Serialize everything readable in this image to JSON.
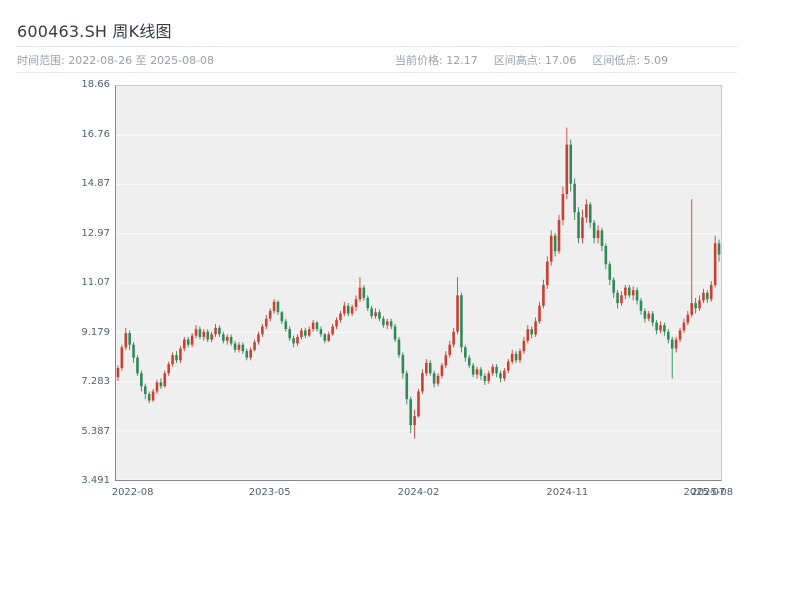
{
  "header": {
    "title": "600463.SH 周K线图",
    "range_label": "时间范围: 2022-08-26 至 2025-08-08",
    "stats": {
      "current": "当前价格: 12.17",
      "high": "区间高点: 17.06",
      "low": "区间低点: 5.09"
    }
  },
  "chart_data": {
    "type": "candlestick",
    "title": "600463.SH 周K线图",
    "symbol": "600463.SH",
    "period": "weekly",
    "date_start": "2022-08-26",
    "date_end": "2025-08-08",
    "current_price": 12.17,
    "range_high": 17.06,
    "range_low": 5.09,
    "ylim": [
      3.491,
      18.66
    ],
    "grid": "horizontal-only",
    "legend": "none",
    "up_color": "#cf3e2f",
    "down_color": "#2e8b57",
    "plot_bg": "#efefef",
    "y_ticks": [
      {
        "v": 3.491,
        "label": "3.491"
      },
      {
        "v": 5.387,
        "label": "5.387"
      },
      {
        "v": 7.283,
        "label": "7.283"
      },
      {
        "v": 9.179,
        "label": "9.179"
      },
      {
        "v": 11.07,
        "label": "11.07"
      },
      {
        "v": 12.97,
        "label": "12.97"
      },
      {
        "v": 14.87,
        "label": "14.87"
      },
      {
        "v": 16.76,
        "label": "16.76"
      },
      {
        "v": 18.66,
        "label": "18.66"
      }
    ],
    "x_ticks": [
      {
        "index": 4,
        "label": "2022-08"
      },
      {
        "index": 39,
        "label": "2023-05"
      },
      {
        "index": 77,
        "label": "2024-02"
      },
      {
        "index": 115,
        "label": "2024-11"
      },
      {
        "index": 150,
        "label": "2025-07"
      },
      {
        "index": 152,
        "label": "2025-08"
      }
    ],
    "candles": [
      [
        7.45,
        7.9,
        7.3,
        7.8
      ],
      [
        7.8,
        8.7,
        7.7,
        8.6
      ],
      [
        8.6,
        9.35,
        8.5,
        9.15
      ],
      [
        9.15,
        9.25,
        8.5,
        8.7
      ],
      [
        8.7,
        8.8,
        8.0,
        8.2
      ],
      [
        8.2,
        8.3,
        7.5,
        7.6
      ],
      [
        7.6,
        7.7,
        6.9,
        7.1
      ],
      [
        7.1,
        7.2,
        6.6,
        6.8
      ],
      [
        6.8,
        6.9,
        6.45,
        6.55
      ],
      [
        6.55,
        7.0,
        6.5,
        6.9
      ],
      [
        6.9,
        7.35,
        6.8,
        7.25
      ],
      [
        7.25,
        7.4,
        7.0,
        7.1
      ],
      [
        7.1,
        7.7,
        7.05,
        7.6
      ],
      [
        7.6,
        8.05,
        7.5,
        7.95
      ],
      [
        7.95,
        8.4,
        7.85,
        8.3
      ],
      [
        8.3,
        8.45,
        8.0,
        8.1
      ],
      [
        8.1,
        8.65,
        8.0,
        8.55
      ],
      [
        8.55,
        9.0,
        8.45,
        8.9
      ],
      [
        8.9,
        9.0,
        8.6,
        8.7
      ],
      [
        8.7,
        9.15,
        8.6,
        9.05
      ],
      [
        9.05,
        9.45,
        8.95,
        9.3
      ],
      [
        9.3,
        9.4,
        8.9,
        9.0
      ],
      [
        9.0,
        9.3,
        8.85,
        9.2
      ],
      [
        9.2,
        9.3,
        8.8,
        8.9
      ],
      [
        8.9,
        9.2,
        8.8,
        9.1
      ],
      [
        9.1,
        9.5,
        9.0,
        9.35
      ],
      [
        9.35,
        9.45,
        9.0,
        9.1
      ],
      [
        9.1,
        9.2,
        8.75,
        8.85
      ],
      [
        8.85,
        9.1,
        8.7,
        9.0
      ],
      [
        9.0,
        9.1,
        8.65,
        8.75
      ],
      [
        8.75,
        8.85,
        8.4,
        8.5
      ],
      [
        8.5,
        8.8,
        8.4,
        8.7
      ],
      [
        8.7,
        8.8,
        8.35,
        8.45
      ],
      [
        8.45,
        8.55,
        8.1,
        8.2
      ],
      [
        8.2,
        8.6,
        8.1,
        8.5
      ],
      [
        8.5,
        8.9,
        8.45,
        8.8
      ],
      [
        8.8,
        9.2,
        8.7,
        9.1
      ],
      [
        9.1,
        9.5,
        9.0,
        9.4
      ],
      [
        9.4,
        9.85,
        9.3,
        9.7
      ],
      [
        9.7,
        10.1,
        9.6,
        10.0
      ],
      [
        10.0,
        10.45,
        9.9,
        10.35
      ],
      [
        10.35,
        10.4,
        9.85,
        9.95
      ],
      [
        9.95,
        10.0,
        9.5,
        9.6
      ],
      [
        9.6,
        9.7,
        9.2,
        9.3
      ],
      [
        9.3,
        9.4,
        8.85,
        8.95
      ],
      [
        8.95,
        9.05,
        8.6,
        8.75
      ],
      [
        8.75,
        9.1,
        8.65,
        9.0
      ],
      [
        9.0,
        9.35,
        8.9,
        9.25
      ],
      [
        9.25,
        9.35,
        8.95,
        9.05
      ],
      [
        9.05,
        9.4,
        9.0,
        9.3
      ],
      [
        9.3,
        9.65,
        9.2,
        9.55
      ],
      [
        9.55,
        9.6,
        9.2,
        9.3
      ],
      [
        9.3,
        9.4,
        9.0,
        9.1
      ],
      [
        9.1,
        9.15,
        8.75,
        8.85
      ],
      [
        8.85,
        9.2,
        8.8,
        9.1
      ],
      [
        9.1,
        9.5,
        9.05,
        9.4
      ],
      [
        9.4,
        9.75,
        9.3,
        9.65
      ],
      [
        9.65,
        10.0,
        9.55,
        9.9
      ],
      [
        9.9,
        10.35,
        9.8,
        10.2
      ],
      [
        10.2,
        10.3,
        9.8,
        9.9
      ],
      [
        9.9,
        10.25,
        9.8,
        10.15
      ],
      [
        10.15,
        10.6,
        10.0,
        10.45
      ],
      [
        10.45,
        11.3,
        10.35,
        10.9
      ],
      [
        10.9,
        11.0,
        10.4,
        10.5
      ],
      [
        10.5,
        10.6,
        10.0,
        10.1
      ],
      [
        10.1,
        10.2,
        9.7,
        9.8
      ],
      [
        9.8,
        10.1,
        9.7,
        9.95
      ],
      [
        9.95,
        10.05,
        9.6,
        9.7
      ],
      [
        9.7,
        9.8,
        9.35,
        9.45
      ],
      [
        9.45,
        9.7,
        9.3,
        9.6
      ],
      [
        9.6,
        9.7,
        9.3,
        9.4
      ],
      [
        9.4,
        9.5,
        8.8,
        8.9
      ],
      [
        8.9,
        9.0,
        8.2,
        8.3
      ],
      [
        8.3,
        8.4,
        7.4,
        7.6
      ],
      [
        7.6,
        7.7,
        6.4,
        6.6
      ],
      [
        6.6,
        6.7,
        5.3,
        5.6
      ],
      [
        5.6,
        6.2,
        5.09,
        5.95
      ],
      [
        5.95,
        7.0,
        5.9,
        6.9
      ],
      [
        6.9,
        7.75,
        6.8,
        7.6
      ],
      [
        7.6,
        8.15,
        7.5,
        8.0
      ],
      [
        8.0,
        8.1,
        7.5,
        7.6
      ],
      [
        7.6,
        7.7,
        7.05,
        7.2
      ],
      [
        7.2,
        7.6,
        7.1,
        7.5
      ],
      [
        7.5,
        8.0,
        7.4,
        7.9
      ],
      [
        7.9,
        8.45,
        7.8,
        8.3
      ],
      [
        8.3,
        8.85,
        8.2,
        8.7
      ],
      [
        8.7,
        9.35,
        8.6,
        9.2
      ],
      [
        9.2,
        11.3,
        9.1,
        10.6
      ],
      [
        10.6,
        10.7,
        8.4,
        8.6
      ],
      [
        8.6,
        8.7,
        8.05,
        8.2
      ],
      [
        8.2,
        8.3,
        7.8,
        7.9
      ],
      [
        7.9,
        8.0,
        7.45,
        7.55
      ],
      [
        7.55,
        7.85,
        7.4,
        7.75
      ],
      [
        7.75,
        7.85,
        7.35,
        7.5
      ],
      [
        7.5,
        7.6,
        7.15,
        7.3
      ],
      [
        7.3,
        7.7,
        7.2,
        7.6
      ],
      [
        7.6,
        7.95,
        7.5,
        7.85
      ],
      [
        7.85,
        7.95,
        7.45,
        7.6
      ],
      [
        7.6,
        7.7,
        7.25,
        7.4
      ],
      [
        7.4,
        7.8,
        7.3,
        7.7
      ],
      [
        7.7,
        8.15,
        7.6,
        8.05
      ],
      [
        8.05,
        8.5,
        7.95,
        8.35
      ],
      [
        8.35,
        8.45,
        8.0,
        8.1
      ],
      [
        8.1,
        8.55,
        8.0,
        8.45
      ],
      [
        8.45,
        9.0,
        8.35,
        8.85
      ],
      [
        8.85,
        9.45,
        8.75,
        9.3
      ],
      [
        9.3,
        9.4,
        8.95,
        9.1
      ],
      [
        9.1,
        9.75,
        9.0,
        9.6
      ],
      [
        9.6,
        10.35,
        9.5,
        10.2
      ],
      [
        10.2,
        11.2,
        10.1,
        11.0
      ],
      [
        11.0,
        12.1,
        10.85,
        11.9
      ],
      [
        11.9,
        13.1,
        11.75,
        12.9
      ],
      [
        12.9,
        13.0,
        12.1,
        12.3
      ],
      [
        12.3,
        13.7,
        12.2,
        13.5
      ],
      [
        13.5,
        14.8,
        13.3,
        14.5
      ],
      [
        14.5,
        17.06,
        14.3,
        16.4
      ],
      [
        16.4,
        16.6,
        14.6,
        14.9
      ],
      [
        14.9,
        15.1,
        13.5,
        13.8
      ],
      [
        13.8,
        14.0,
        12.6,
        12.8
      ],
      [
        12.8,
        13.9,
        12.6,
        13.6
      ],
      [
        13.6,
        14.3,
        13.4,
        14.1
      ],
      [
        14.1,
        14.2,
        13.2,
        13.4
      ],
      [
        13.4,
        13.5,
        12.6,
        12.8
      ],
      [
        12.8,
        13.3,
        12.6,
        13.1
      ],
      [
        13.1,
        13.2,
        12.3,
        12.5
      ],
      [
        12.5,
        12.6,
        11.6,
        11.8
      ],
      [
        11.8,
        11.9,
        11.0,
        11.2
      ],
      [
        11.2,
        11.3,
        10.5,
        10.7
      ],
      [
        10.7,
        10.8,
        10.1,
        10.3
      ],
      [
        10.3,
        10.75,
        10.2,
        10.6
      ],
      [
        10.6,
        11.0,
        10.45,
        10.9
      ],
      [
        10.9,
        11.0,
        10.5,
        10.6
      ],
      [
        10.6,
        10.95,
        10.4,
        10.8
      ],
      [
        10.8,
        10.9,
        10.25,
        10.4
      ],
      [
        10.4,
        10.5,
        9.85,
        10.0
      ],
      [
        10.0,
        10.1,
        9.55,
        9.7
      ],
      [
        9.7,
        10.0,
        9.6,
        9.9
      ],
      [
        9.9,
        10.0,
        9.4,
        9.55
      ],
      [
        9.55,
        9.65,
        9.1,
        9.25
      ],
      [
        9.25,
        9.6,
        9.15,
        9.45
      ],
      [
        9.45,
        9.55,
        9.05,
        9.2
      ],
      [
        9.2,
        9.3,
        8.75,
        8.9
      ],
      [
        8.9,
        9.0,
        7.4,
        8.55
      ],
      [
        8.55,
        9.0,
        8.4,
        8.9
      ],
      [
        8.9,
        9.35,
        8.8,
        9.25
      ],
      [
        9.25,
        9.7,
        9.15,
        9.55
      ],
      [
        9.55,
        10.0,
        9.45,
        9.85
      ],
      [
        9.85,
        14.3,
        9.75,
        10.3
      ],
      [
        10.3,
        10.5,
        9.9,
        10.1
      ],
      [
        10.1,
        10.6,
        10.0,
        10.4
      ],
      [
        10.4,
        10.85,
        10.3,
        10.7
      ],
      [
        10.7,
        10.8,
        10.3,
        10.45
      ],
      [
        10.45,
        11.15,
        10.35,
        11.0
      ],
      [
        11.0,
        12.9,
        10.9,
        12.6
      ],
      [
        12.6,
        12.75,
        11.9,
        12.17
      ]
    ]
  }
}
